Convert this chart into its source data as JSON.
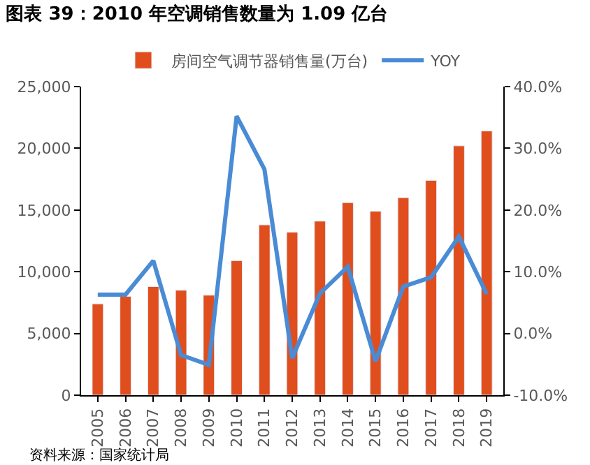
{
  "chart_data": {
    "type": "bar",
    "title": "图表 39：2010 年空调销售数量为 1.09 亿台",
    "categories": [
      "2005",
      "2006",
      "2007",
      "2008",
      "2009",
      "2010",
      "2011",
      "2012",
      "2013",
      "2014",
      "2015",
      "2016",
      "2017",
      "2018",
      "2019"
    ],
    "series": [
      {
        "name": "房间空气调节器销售量(万台)",
        "color": "#e04e1e",
        "values": [
          7400,
          8000,
          8800,
          8500,
          8100,
          10900,
          13800,
          13200,
          14100,
          15600,
          14900,
          16000,
          17400,
          20200,
          21400
        ]
      },
      {
        "name": "YOY",
        "type": "line",
        "axis": "y2",
        "color": "#4a8bd6",
        "marker": "none",
        "line_style": "solid",
        "values": [
          6.3,
          6.3,
          11.8,
          -3.5,
          -5.1,
          35.2,
          26.6,
          -4.0,
          6.5,
          10.8,
          -4.5,
          7.6,
          9.1,
          15.7,
          6.4
        ]
      }
    ],
    "ylim": [
      0,
      25000
    ],
    "yticks": [
      {
        "value": 0,
        "label": "0"
      },
      {
        "value": 5000,
        "label": "5,000"
      },
      {
        "value": 10000,
        "label": "10,000"
      },
      {
        "value": 15000,
        "label": "15,000"
      },
      {
        "value": 20000,
        "label": "20,000"
      },
      {
        "value": 25000,
        "label": "25,000"
      }
    ],
    "y2lim": [
      -10,
      40
    ],
    "y2ticks": [
      {
        "value": -10,
        "label": "-10.0%"
      },
      {
        "value": 0,
        "label": "0.0%"
      },
      {
        "value": 10,
        "label": "10.0%"
      },
      {
        "value": 20,
        "label": "20.0%"
      },
      {
        "value": 30,
        "label": "30.0%"
      },
      {
        "value": 40,
        "label": "40.0%"
      }
    ],
    "legend": "top",
    "annotations": [
      "资料来源：国家统计局"
    ]
  }
}
